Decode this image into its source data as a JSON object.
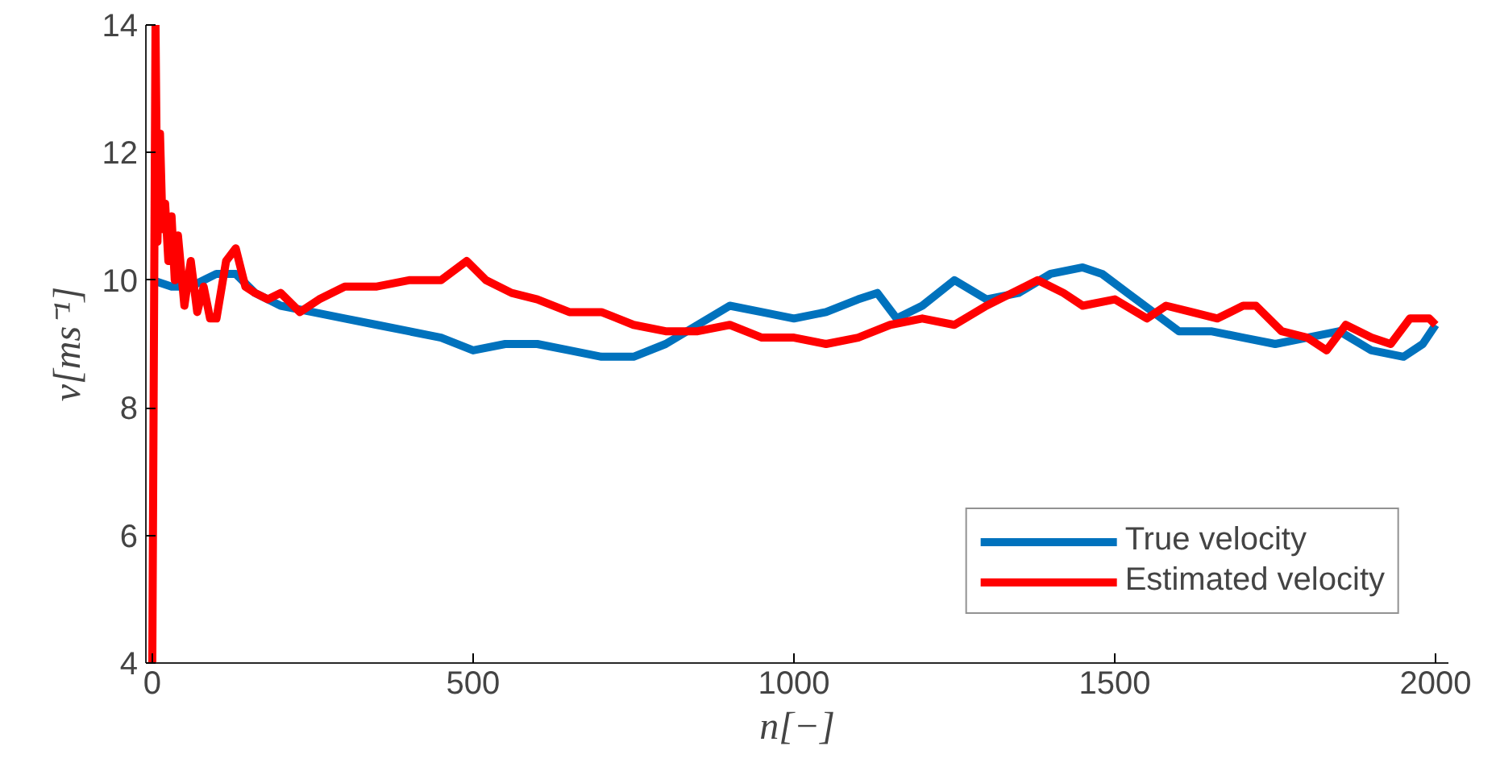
{
  "chart_data": {
    "type": "line",
    "xlabel": "n[−]",
    "ylabel": "v[ms⁻¹]",
    "xlim": [
      -10,
      2020
    ],
    "ylim": [
      4,
      14
    ],
    "xticks": [
      0,
      500,
      1000,
      1500,
      2000
    ],
    "yticks": [
      4,
      6,
      8,
      10,
      12,
      14
    ],
    "grid": false,
    "legend": "bottom right",
    "line_style": "solid",
    "marker": "none",
    "series": [
      {
        "name": "True velocity",
        "color": "#0072bd",
        "x": [
          0,
          30,
          60,
          100,
          130,
          160,
          200,
          250,
          300,
          350,
          400,
          450,
          500,
          550,
          600,
          650,
          700,
          750,
          800,
          850,
          900,
          950,
          1000,
          1050,
          1100,
          1130,
          1160,
          1200,
          1250,
          1300,
          1350,
          1400,
          1450,
          1480,
          1520,
          1560,
          1600,
          1650,
          1700,
          1750,
          1800,
          1850,
          1900,
          1950,
          1980,
          2000
        ],
        "values": [
          10.0,
          9.9,
          9.9,
          10.1,
          10.1,
          9.8,
          9.6,
          9.5,
          9.4,
          9.3,
          9.2,
          9.1,
          8.9,
          9.0,
          9.0,
          8.9,
          8.8,
          8.8,
          9.0,
          9.3,
          9.6,
          9.5,
          9.4,
          9.5,
          9.7,
          9.8,
          9.4,
          9.6,
          10.0,
          9.7,
          9.8,
          10.1,
          10.2,
          10.1,
          9.8,
          9.5,
          9.2,
          9.2,
          9.1,
          9.0,
          9.1,
          9.2,
          8.9,
          8.8,
          9.0,
          9.3
        ]
      },
      {
        "name": "Estimated velocity",
        "color": "#ff0000",
        "x": [
          0,
          5,
          8,
          12,
          16,
          20,
          25,
          30,
          35,
          40,
          50,
          60,
          70,
          80,
          90,
          100,
          115,
          130,
          145,
          160,
          180,
          200,
          230,
          260,
          300,
          350,
          400,
          450,
          490,
          520,
          560,
          600,
          650,
          700,
          750,
          800,
          850,
          900,
          950,
          1000,
          1050,
          1100,
          1150,
          1200,
          1250,
          1300,
          1340,
          1380,
          1420,
          1450,
          1500,
          1550,
          1580,
          1620,
          1660,
          1700,
          1720,
          1760,
          1800,
          1830,
          1860,
          1900,
          1930,
          1960,
          1990,
          2000
        ],
        "values": [
          4.0,
          14.0,
          10.6,
          12.3,
          10.8,
          11.2,
          10.3,
          11.0,
          10.0,
          10.7,
          9.6,
          10.3,
          9.5,
          9.9,
          9.4,
          9.4,
          10.3,
          10.5,
          9.9,
          9.8,
          9.7,
          9.8,
          9.5,
          9.7,
          9.9,
          9.9,
          10.0,
          10.0,
          10.3,
          10.0,
          9.8,
          9.7,
          9.5,
          9.5,
          9.3,
          9.2,
          9.2,
          9.3,
          9.1,
          9.1,
          9.0,
          9.1,
          9.3,
          9.4,
          9.3,
          9.6,
          9.8,
          10.0,
          9.8,
          9.6,
          9.7,
          9.4,
          9.6,
          9.5,
          9.4,
          9.6,
          9.6,
          9.2,
          9.1,
          8.9,
          9.3,
          9.1,
          9.0,
          9.4,
          9.4,
          9.3
        ]
      }
    ]
  }
}
